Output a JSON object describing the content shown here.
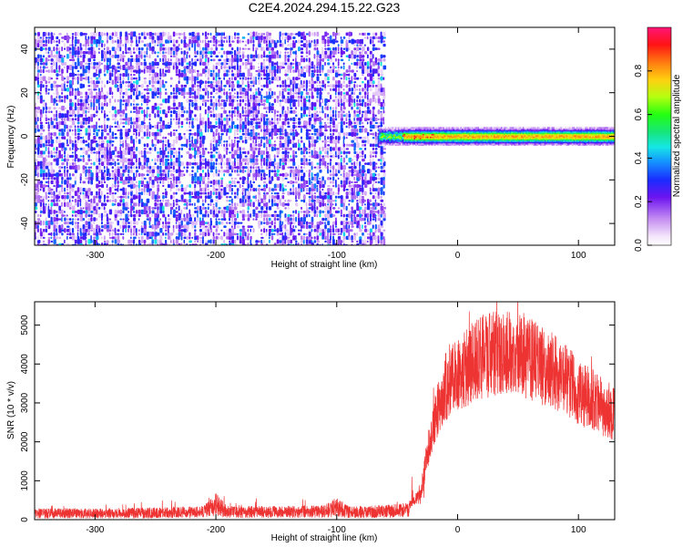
{
  "title": "C2E4.2024.294.15.22.G23",
  "chart_data": [
    {
      "type": "heatmap",
      "xlabel": "Height of straight line (km)",
      "ylabel": "Frequency (Hz)",
      "xlim": [
        -350,
        130
      ],
      "ylim": [
        -50,
        50
      ],
      "xticks": [
        -300,
        -200,
        -100,
        0,
        100
      ],
      "yticks": [
        -40,
        -20,
        0,
        20,
        40
      ],
      "grid": false,
      "noise_region": {
        "x_range": [
          -350,
          -60
        ],
        "freq_range": [
          -50,
          48
        ],
        "amplitude_range": [
          0.05,
          0.35
        ]
      },
      "signal_band": {
        "x_range": [
          -65,
          130
        ],
        "center_freq": 0,
        "halfwidth": 3,
        "peak_amplitude": 0.8
      },
      "colorbar": {
        "label": "Normalized spectral amplitude",
        "range": [
          0.0,
          1.0
        ],
        "ticks": [
          0.0,
          0.2,
          0.4,
          0.6,
          0.8
        ],
        "tick_labels": [
          "0.0",
          "0.2",
          "0.4",
          "0.6",
          "0.8"
        ]
      }
    },
    {
      "type": "line",
      "xlabel": "Height of straight line (km)",
      "ylabel": "SNR (10 * v/v)",
      "xlim": [
        -350,
        130
      ],
      "ylim": [
        0,
        5600
      ],
      "xticks": [
        -300,
        -200,
        -100,
        0,
        100
      ],
      "yticks": [
        0,
        1000,
        2000,
        3000,
        4000,
        5000
      ],
      "grid": false,
      "color": "#ee3333",
      "envelope": {
        "x": [
          -350,
          -300,
          -250,
          -210,
          -200,
          -190,
          -150,
          -110,
          -100,
          -90,
          -60,
          -40,
          -30,
          -25,
          -20,
          -15,
          -10,
          -5,
          0,
          10,
          20,
          30,
          40,
          50,
          60,
          70,
          80,
          90,
          100,
          110,
          120,
          130
        ],
        "y": [
          250,
          250,
          270,
          300,
          600,
          300,
          300,
          320,
          500,
          300,
          320,
          380,
          700,
          1800,
          2500,
          3100,
          3500,
          3800,
          3900,
          4100,
          4300,
          4400,
          4400,
          4350,
          4250,
          4100,
          3900,
          3700,
          3400,
          3200,
          3000,
          2800
        ]
      },
      "noise_level": 300
    }
  ]
}
